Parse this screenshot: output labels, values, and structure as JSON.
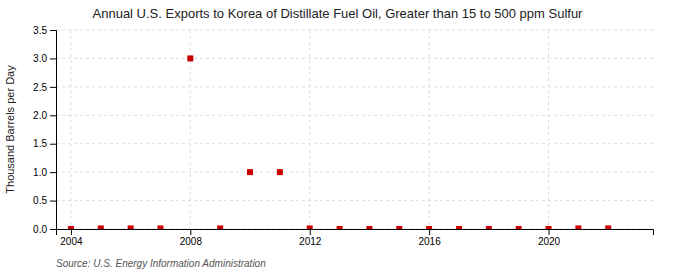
{
  "chart_data": {
    "type": "scatter",
    "title": "Annual U.S. Exports to Korea of Distillate Fuel Oil, Greater than 15 to 500 ppm Sulfur",
    "y_label": "Thousand Barrels per Day",
    "annotation": "Source: U.S. Energy Information Administration",
    "x": [
      2004,
      2005,
      2006,
      2007,
      2008,
      2009,
      2010,
      2011,
      2012,
      2013,
      2014,
      2015,
      2016,
      2017,
      2018,
      2019,
      2020,
      2021,
      2022
    ],
    "values": [
      0.0,
      0.01,
      0.01,
      0.01,
      3.0,
      0.01,
      1.0,
      1.0,
      0.01,
      0.0,
      0.0,
      0.0,
      0.0,
      0.0,
      0.0,
      0.0,
      0.0,
      0.01,
      0.01
    ],
    "color": "#cc0000",
    "marker": "square",
    "xlim": [
      2003.5,
      2023.5
    ],
    "ylim": [
      0.0,
      3.5
    ],
    "xticks": [
      2004,
      2008,
      2012,
      2016,
      2020
    ],
    "yticks": [
      {
        "value": 0.0,
        "label": "0.0"
      },
      0.5,
      {
        "value": 1.0,
        "label": "1.0"
      },
      1.5,
      {
        "value": 2.0,
        "label": "2.0"
      },
      2.5,
      {
        "value": 3.0,
        "label": "3.0"
      },
      3.5
    ],
    "grid": true
  }
}
